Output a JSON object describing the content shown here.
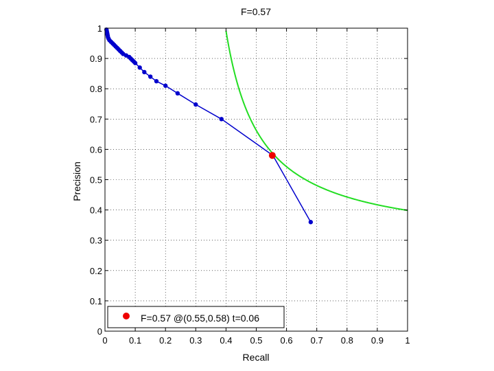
{
  "chart_data": {
    "type": "line",
    "title": "F=0.57",
    "xlabel": "Recall",
    "ylabel": "Precision",
    "xlim": [
      0,
      1
    ],
    "ylim": [
      0,
      1
    ],
    "grid": true,
    "xticks": [
      "0",
      "0.1",
      "0.2",
      "0.3",
      "0.4",
      "0.5",
      "0.6",
      "0.7",
      "0.8",
      "0.9",
      "1"
    ],
    "yticks": [
      "0",
      "0.1",
      "0.2",
      "0.3",
      "0.4",
      "0.5",
      "0.6",
      "0.7",
      "0.8",
      "0.9",
      "1"
    ],
    "series": [
      {
        "color": "#0000cc",
        "x": [
          0.005,
          0.006,
          0.007,
          0.008,
          0.009,
          0.01,
          0.012,
          0.015,
          0.02,
          0.025,
          0.03,
          0.035,
          0.04,
          0.045,
          0.05,
          0.055,
          0.06,
          0.07,
          0.08,
          0.085,
          0.09,
          0.095,
          0.1,
          0.115,
          0.13,
          0.15,
          0.17,
          0.2,
          0.24,
          0.3,
          0.385,
          0.555,
          0.68
        ],
        "y": [
          0.995,
          0.99,
          0.985,
          0.98,
          0.975,
          0.97,
          0.965,
          0.96,
          0.955,
          0.95,
          0.945,
          0.94,
          0.935,
          0.93,
          0.925,
          0.92,
          0.915,
          0.91,
          0.905,
          0.9,
          0.895,
          0.89,
          0.885,
          0.87,
          0.855,
          0.84,
          0.825,
          0.81,
          0.785,
          0.748,
          0.7,
          0.58,
          0.36
        ]
      }
    ],
    "iso_f_curve": {
      "f": 0.57,
      "color": "#22dd22"
    },
    "best_point": {
      "x": 0.553,
      "y": 0.58,
      "color": "#ee0000"
    },
    "legend": {
      "position": "bottom-left",
      "label": "F=0.57 @(0.55,0.58) t=0.06"
    }
  }
}
